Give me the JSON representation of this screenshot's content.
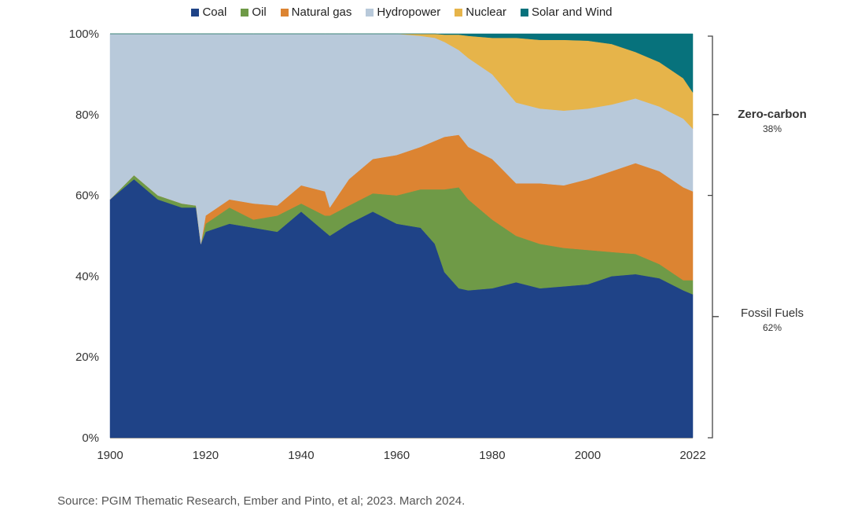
{
  "chart_data": {
    "type": "area",
    "stacked": true,
    "xlabel": "",
    "ylabel": "",
    "ylim": [
      0,
      100
    ],
    "xlim": [
      1900,
      2022
    ],
    "y_ticks": [
      "0%",
      "20%",
      "40%",
      "60%",
      "80%",
      "100%"
    ],
    "y_tick_values": [
      0,
      20,
      40,
      60,
      80,
      100
    ],
    "x_ticks": [
      "1900",
      "1920",
      "1940",
      "1960",
      "1980",
      "2000",
      "2022"
    ],
    "x_tick_values": [
      1900,
      1920,
      1940,
      1960,
      1980,
      2000,
      2022
    ],
    "legend_placement": "top",
    "x": [
      1900,
      1905,
      1910,
      1915,
      1918,
      1919,
      1920,
      1925,
      1930,
      1935,
      1940,
      1945,
      1946,
      1950,
      1955,
      1960,
      1965,
      1968,
      1970,
      1973,
      1975,
      1980,
      1985,
      1990,
      1995,
      2000,
      2005,
      2010,
      2015,
      2020,
      2022
    ],
    "series": [
      {
        "name": "Coal",
        "color": "#1f4387",
        "values": [
          59,
          64,
          59,
          57,
          57,
          48,
          51,
          53,
          52,
          51,
          56,
          51,
          50,
          53,
          56,
          53,
          52,
          48,
          41,
          37,
          36.5,
          37,
          38.5,
          37,
          37.5,
          38,
          40,
          40.5,
          39.5,
          36.5,
          35.5
        ]
      },
      {
        "name": "Oil",
        "color": "#6f9a47",
        "values": [
          0,
          1,
          1,
          1,
          0.5,
          0,
          2,
          4,
          2,
          4,
          2,
          4,
          5,
          4.5,
          4.5,
          7,
          9.5,
          13.5,
          20.5,
          25,
          22.5,
          17,
          11.5,
          11,
          9.5,
          8.5,
          6,
          5,
          3.5,
          2.5,
          3.5
        ]
      },
      {
        "name": "Natural gas",
        "color": "#dc8432",
        "values": [
          0,
          0,
          0,
          0,
          0,
          0,
          2,
          2,
          4,
          2.5,
          4.5,
          6,
          2,
          6.5,
          8.5,
          10,
          10.5,
          12,
          13,
          13,
          13,
          15,
          13,
          15,
          15.5,
          17.5,
          20,
          22.5,
          23,
          23,
          22
        ]
      },
      {
        "name": "Hydropower",
        "color": "#b8c9da",
        "values": [
          41,
          35,
          40,
          42,
          42.5,
          52,
          45,
          41,
          42,
          42.5,
          37.5,
          39,
          43,
          36,
          31,
          30,
          27.5,
          25.5,
          23.5,
          21,
          22,
          21,
          20,
          18.5,
          18.5,
          17.5,
          16.5,
          16,
          16,
          17,
          15.5
        ]
      },
      {
        "name": "Nuclear",
        "color": "#e6b44a",
        "values": [
          0,
          0,
          0,
          0,
          0,
          0,
          0,
          0,
          0,
          0,
          0,
          0,
          0,
          0,
          0,
          0,
          0.5,
          1,
          1.8,
          3.8,
          5.5,
          9,
          16,
          17,
          17.5,
          16.8,
          15,
          11.5,
          11,
          10,
          9
        ]
      },
      {
        "name": "Solar and Wind",
        "color": "#07727c",
        "values": [
          0,
          0,
          0,
          0,
          0,
          0,
          0,
          0,
          0,
          0,
          0,
          0,
          0,
          0,
          0,
          0,
          0,
          0,
          0.2,
          0.2,
          0.5,
          1,
          1,
          1.5,
          1.5,
          1.7,
          2.5,
          4.5,
          7,
          11,
          14.5
        ]
      }
    ],
    "annotations": [
      {
        "label": "Zero-carbon",
        "value": "38%"
      },
      {
        "label": "Fossil Fuels",
        "value": "62%"
      }
    ],
    "source": "Source: PGIM Thematic Research, Ember and Pinto, et al; 2023. March 2024."
  }
}
